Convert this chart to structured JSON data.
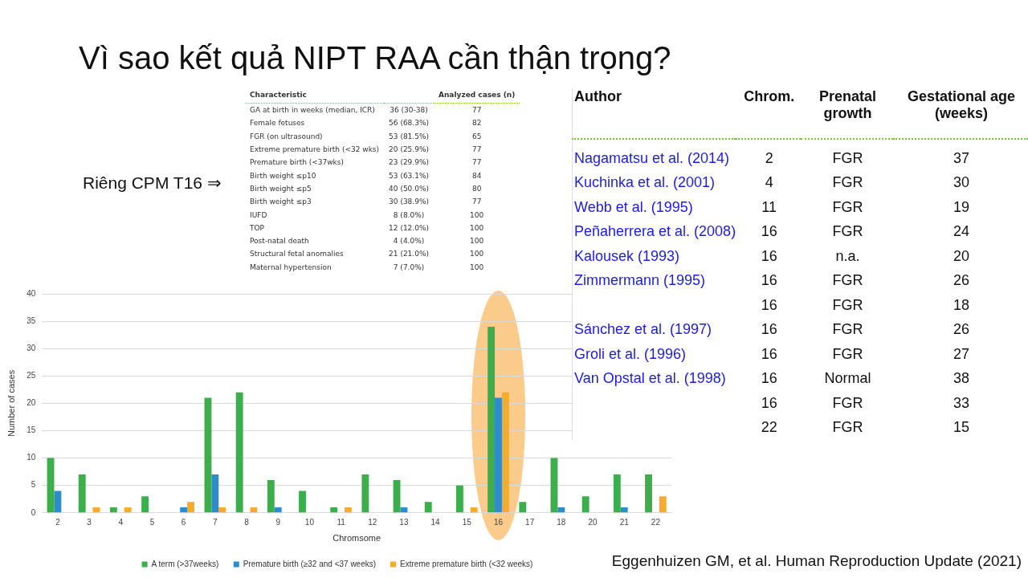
{
  "chart_data": [
    {
      "type": "bar",
      "title": "Vì sao kết quả NIPT RAA cần thận trọng?",
      "xlabel": "Chromsome",
      "ylabel": "Number of cases",
      "categories": [
        "2",
        "3",
        "4",
        "5",
        "6",
        "7",
        "8",
        "9",
        "10",
        "11",
        "12",
        "13",
        "14",
        "15",
        "16",
        "17",
        "18",
        "20",
        "21",
        "22"
      ],
      "series": [
        {
          "name": "A term (>37weeks)",
          "color": "#3cae4c",
          "values": [
            10,
            7,
            1,
            3,
            0,
            21,
            22,
            6,
            4,
            1,
            7,
            6,
            2,
            5,
            34,
            2,
            10,
            3,
            7,
            7
          ]
        },
        {
          "name": "Premature birth (≥32 and <37 weeks)",
          "color": "#2e8ccc",
          "values": [
            4,
            0,
            0,
            0,
            1,
            7,
            0,
            1,
            0,
            0,
            0,
            1,
            0,
            0,
            21,
            0,
            1,
            0,
            1,
            0
          ]
        },
        {
          "name": "Extreme premature birth (<32 weeks)",
          "color": "#f5ac2c",
          "values": [
            0,
            1,
            1,
            0,
            2,
            1,
            1,
            0,
            0,
            1,
            0,
            0,
            0,
            1,
            22,
            0,
            0,
            0,
            0,
            3
          ]
        }
      ],
      "ylim": [
        0,
        40
      ],
      "yticks": [
        0,
        5,
        10,
        15,
        20,
        25,
        30,
        35,
        40
      ],
      "grid": "y",
      "legend": "bottom",
      "annotations": [
        "Eggenhuizen GM, et al. Human Reproduction Update (2021)"
      ]
    },
    {
      "type": "other",
      "title": "Riêng CPM T16 ⇒",
      "categories": [
        "Characteristic",
        null,
        "Analyzed cases (n)"
      ],
      "annotations": [
        "GA at birth in weeks (median, ICR)",
        "36 (30-38)",
        "77",
        "Female fetuses",
        "56 (68.3%)",
        "82",
        "FGR (on ultrasound)",
        "53 (81.5%)",
        "65",
        "Extreme premature birth (<32 wks)",
        "20 (25.9%)",
        "77",
        "Premature birth (<37wks)",
        "23 (29.9%)",
        "77",
        "Birth weight ≤p10",
        "53 (63.1%)",
        "84",
        "Birth weight ≤p5",
        "40 (50.0%)",
        "80",
        "Birth weight ≤p3",
        "30 (38.9%)",
        "77",
        "IUFD",
        "8 (8.0%)",
        "100",
        "TOP",
        "12 (12.0%)",
        "100",
        "Post-natal death",
        "4 (4.0%)",
        "100",
        "Structural fetal anomalies",
        "21 (21.0%)",
        "100",
        "Maternal hypertension",
        "7 (7.0%)",
        "100"
      ]
    },
    {
      "type": "other",
      "categories": [
        "Author",
        "Chrom.",
        "Prenatal growth",
        "Gestational age (weeks)"
      ],
      "annotations": [
        "Nagamatsu et al. (2014)",
        "2",
        "FGR",
        "37",
        "Kuchinka et al. (2001)",
        "4",
        "FGR",
        "30",
        "Webb et al. (1995)",
        "11",
        "FGR",
        "19",
        "Peñaherrera et al. (2008)",
        "16",
        "FGR",
        "24",
        "Kalousek (1993)",
        "16",
        "n.a.",
        "20",
        "Zimmermann (1995)",
        "16",
        "FGR",
        "26",
        null,
        "16",
        "FGR",
        "18",
        "Sánchez et al. (1997)",
        "16",
        "FGR",
        "26",
        "Groli et al. (1996)",
        "16",
        "FGR",
        "27",
        "Van Opstal et al. (1998)",
        "16",
        "Normal",
        "38",
        null,
        "16",
        "FGR",
        "33",
        null,
        "22",
        "FGR",
        "15"
      ]
    }
  ]
}
